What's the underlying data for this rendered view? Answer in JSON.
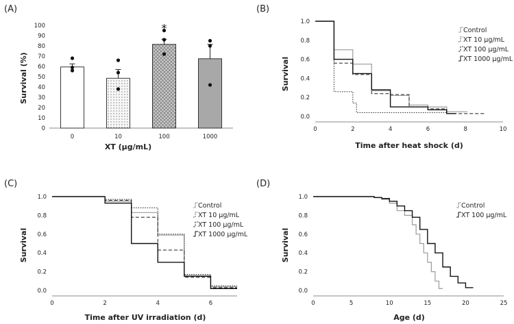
{
  "panels": {
    "A": "(A)",
    "B": "(B)",
    "C": "(C)",
    "D": "(D)"
  },
  "chart_data": [
    {
      "id": "A",
      "type": "bar",
      "categories": [
        "0",
        "10",
        "100",
        "1000"
      ],
      "values": [
        59.5,
        48.5,
        81.5,
        67.5
      ],
      "errors": [
        3,
        8.5,
        5,
        14
      ],
      "points": [
        [
          59,
          56,
          68
        ],
        [
          38,
          54,
          66
        ],
        [
          72,
          86,
          95
        ],
        [
          42,
          85,
          80
        ]
      ],
      "significance": [
        "",
        "",
        "*",
        ""
      ],
      "xlabel": "XT (μg/mL)",
      "ylabel": "Survival (%)",
      "ylim": [
        0,
        100
      ],
      "yticks": [
        "0",
        "10",
        "20",
        "30",
        "40",
        "50",
        "60",
        "70",
        "80",
        "90",
        "100"
      ],
      "fill_styles": [
        "white",
        "dotted",
        "crosshatch",
        "gray"
      ]
    },
    {
      "id": "B",
      "type": "line",
      "xlabel": "Time after heat shock (d)",
      "ylabel": "Survival",
      "xlim": [
        0,
        10
      ],
      "ylim": [
        0,
        1
      ],
      "xticks": [
        "0",
        "2",
        "4",
        "6",
        "8",
        "10"
      ],
      "yticks": [
        "0.0",
        "0.2",
        "0.4",
        "0.6",
        "0.8",
        "1.0"
      ],
      "legend_position": "top-right",
      "series": [
        {
          "name": "Control",
          "style": "solid-gray",
          "x": [
            0,
            1,
            2,
            3,
            4,
            5,
            6,
            7,
            8.1
          ],
          "y": [
            1.0,
            0.7,
            0.55,
            0.27,
            0.22,
            0.12,
            0.1,
            0.05,
            0.05
          ]
        },
        {
          "name": "XT 10 μg/mL",
          "style": "dotted",
          "x": [
            0,
            1,
            2,
            2.2,
            7
          ],
          "y": [
            1.0,
            0.26,
            0.14,
            0.04,
            0.04
          ]
        },
        {
          "name": "XT 100 μg/mL",
          "style": "dashed",
          "x": [
            0,
            1,
            2,
            3,
            4,
            5,
            6,
            7,
            9
          ],
          "y": [
            1.0,
            0.56,
            0.44,
            0.24,
            0.23,
            0.1,
            0.08,
            0.03,
            0.03
          ]
        },
        {
          "name": "XT 1000 μg/mL",
          "style": "solid-black",
          "x": [
            0,
            1,
            2,
            3,
            4,
            5,
            6,
            7,
            7.5
          ],
          "y": [
            1.0,
            0.6,
            0.45,
            0.28,
            0.1,
            0.1,
            0.07,
            0.03,
            0.03
          ]
        }
      ]
    },
    {
      "id": "C",
      "type": "line",
      "xlabel": "Time after UV irradiation (d)",
      "ylabel": "Survival",
      "xlim": [
        0,
        7
      ],
      "ylim": [
        0,
        1
      ],
      "xticks": [
        "0",
        "2",
        "4",
        "6"
      ],
      "yticks": [
        "0.0",
        "0.2",
        "0.4",
        "0.6",
        "0.8",
        "1.0"
      ],
      "legend_position": "top-right",
      "series": [
        {
          "name": "Control",
          "style": "solid-gray",
          "x": [
            0,
            2,
            3,
            4,
            5,
            6,
            7
          ],
          "y": [
            1.0,
            0.95,
            0.83,
            0.59,
            0.16,
            0.04,
            0.04
          ]
        },
        {
          "name": "XT 10 μg/mL",
          "style": "dotted",
          "x": [
            0,
            2,
            3,
            4,
            5,
            6,
            7
          ],
          "y": [
            1.0,
            0.97,
            0.88,
            0.6,
            0.17,
            0.05,
            0.05
          ]
        },
        {
          "name": "XT 100 μg/mL",
          "style": "dashed",
          "x": [
            0,
            2,
            3,
            4,
            5,
            6,
            7
          ],
          "y": [
            1.0,
            0.96,
            0.78,
            0.43,
            0.14,
            0.03,
            0.03
          ]
        },
        {
          "name": "XT 1000 μg/mL",
          "style": "solid-black",
          "x": [
            0,
            2,
            3,
            4,
            5,
            6,
            7
          ],
          "y": [
            1.0,
            0.93,
            0.5,
            0.3,
            0.15,
            0.02,
            0.02
          ]
        }
      ]
    },
    {
      "id": "D",
      "type": "line",
      "xlabel": "Age (d)",
      "ylabel": "Survival",
      "xlim": [
        0,
        25
      ],
      "ylim": [
        0,
        1
      ],
      "xticks": [
        "0",
        "5",
        "10",
        "15",
        "20",
        "25"
      ],
      "yticks": [
        "0.0",
        "0.2",
        "0.4",
        "0.6",
        "0.8",
        "1.0"
      ],
      "legend_position": "top-right",
      "series": [
        {
          "name": "Control",
          "style": "solid-gray",
          "x": [
            0,
            7,
            8,
            9,
            10,
            11,
            12,
            13,
            13.5,
            14,
            14.5,
            15,
            15.5,
            16,
            16.5,
            17
          ],
          "y": [
            1.0,
            1.0,
            0.99,
            0.97,
            0.93,
            0.85,
            0.8,
            0.7,
            0.6,
            0.5,
            0.4,
            0.3,
            0.2,
            0.1,
            0.02,
            0.02
          ]
        },
        {
          "name": "XT 100 μg/mL",
          "style": "solid-black",
          "x": [
            0,
            8,
            9,
            10,
            11,
            12,
            13,
            14,
            15,
            16,
            17,
            18,
            19,
            20,
            21
          ],
          "y": [
            1.0,
            0.99,
            0.98,
            0.95,
            0.9,
            0.85,
            0.78,
            0.65,
            0.5,
            0.4,
            0.25,
            0.15,
            0.08,
            0.03,
            0.03
          ]
        }
      ]
    }
  ]
}
